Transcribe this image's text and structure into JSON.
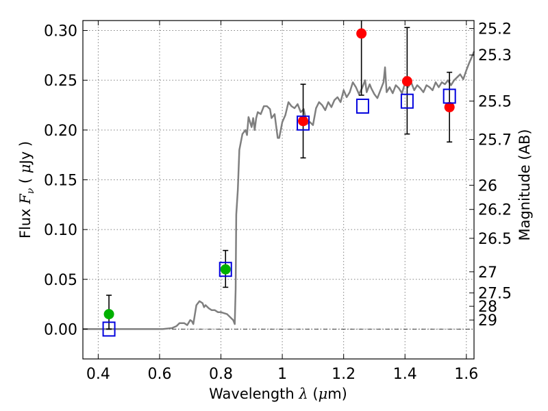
{
  "chart_data": {
    "type": "scatter",
    "xlabel": "Wavelength  λ (μm)",
    "ylabel": "Flux  F_ν  ( μJy )",
    "y2label": "Magnitude (AB)",
    "xlim": [
      0.35,
      1.625
    ],
    "ylim": [
      -0.03,
      0.31
    ],
    "grid": true,
    "x_ticks": [
      0.4,
      0.6,
      0.8,
      1.0,
      1.2,
      1.4,
      1.6
    ],
    "x_tick_labels": [
      "0.4",
      "0.6",
      "0.8",
      "1",
      "1.2",
      "1.4",
      "1.6"
    ],
    "y_ticks": [
      0.0,
      0.05,
      0.1,
      0.15,
      0.2,
      0.25,
      0.3
    ],
    "y_tick_labels": [
      "0.00",
      "0.05",
      "0.10",
      "0.15",
      "0.20",
      "0.25",
      "0.30"
    ],
    "y2_ticks": [
      "25.2",
      "25.3",
      "25.5",
      "25.7",
      "26",
      "26.2",
      "26.5",
      "27",
      "27.5",
      "28",
      "29"
    ],
    "zero_line": 0.0,
    "colors": {
      "spectrum": "#7f7f7f",
      "green": "#00b000",
      "red": "#ff0000",
      "blue": "#0000dd",
      "errorbar": "#000000"
    },
    "series": [
      {
        "style": "line",
        "color": "#7f7f7f",
        "points": [
          [
            0.35,
            0.0
          ],
          [
            0.58,
            0.0
          ],
          [
            0.61,
            0.0
          ],
          [
            0.64,
            0.001
          ],
          [
            0.655,
            0.003
          ],
          [
            0.665,
            0.006
          ],
          [
            0.68,
            0.006
          ],
          [
            0.69,
            0.004
          ],
          [
            0.7,
            0.009
          ],
          [
            0.705,
            0.008
          ],
          [
            0.71,
            0.005
          ],
          [
            0.72,
            0.024
          ],
          [
            0.73,
            0.028
          ],
          [
            0.74,
            0.026
          ],
          [
            0.745,
            0.022
          ],
          [
            0.75,
            0.024
          ],
          [
            0.76,
            0.021
          ],
          [
            0.77,
            0.019
          ],
          [
            0.78,
            0.019
          ],
          [
            0.79,
            0.017
          ],
          [
            0.8,
            0.017
          ],
          [
            0.81,
            0.016
          ],
          [
            0.82,
            0.015
          ],
          [
            0.83,
            0.012
          ],
          [
            0.84,
            0.009
          ],
          [
            0.845,
            0.005
          ],
          [
            0.848,
            0.04
          ],
          [
            0.85,
            0.115
          ],
          [
            0.855,
            0.14
          ],
          [
            0.86,
            0.18
          ],
          [
            0.87,
            0.196
          ],
          [
            0.88,
            0.2
          ],
          [
            0.885,
            0.195
          ],
          [
            0.89,
            0.213
          ],
          [
            0.895,
            0.208
          ],
          [
            0.9,
            0.203
          ],
          [
            0.905,
            0.212
          ],
          [
            0.91,
            0.2
          ],
          [
            0.915,
            0.212
          ],
          [
            0.92,
            0.218
          ],
          [
            0.93,
            0.216
          ],
          [
            0.94,
            0.224
          ],
          [
            0.95,
            0.224
          ],
          [
            0.96,
            0.221
          ],
          [
            0.965,
            0.212
          ],
          [
            0.975,
            0.216
          ],
          [
            0.985,
            0.192
          ],
          [
            0.99,
            0.192
          ],
          [
            1.0,
            0.208
          ],
          [
            1.01,
            0.215
          ],
          [
            1.02,
            0.228
          ],
          [
            1.03,
            0.224
          ],
          [
            1.04,
            0.222
          ],
          [
            1.05,
            0.226
          ],
          [
            1.06,
            0.218
          ],
          [
            1.07,
            0.221
          ],
          [
            1.08,
            0.206
          ],
          [
            1.09,
            0.208
          ],
          [
            1.1,
            0.205
          ],
          [
            1.11,
            0.222
          ],
          [
            1.12,
            0.228
          ],
          [
            1.13,
            0.225
          ],
          [
            1.14,
            0.22
          ],
          [
            1.15,
            0.228
          ],
          [
            1.16,
            0.223
          ],
          [
            1.17,
            0.23
          ],
          [
            1.18,
            0.233
          ],
          [
            1.19,
            0.228
          ],
          [
            1.2,
            0.24
          ],
          [
            1.21,
            0.233
          ],
          [
            1.22,
            0.238
          ],
          [
            1.23,
            0.248
          ],
          [
            1.24,
            0.243
          ],
          [
            1.25,
            0.236
          ],
          [
            1.26,
            0.242
          ],
          [
            1.27,
            0.25
          ],
          [
            1.275,
            0.238
          ],
          [
            1.285,
            0.246
          ],
          [
            1.29,
            0.242
          ],
          [
            1.3,
            0.236
          ],
          [
            1.31,
            0.232
          ],
          [
            1.32,
            0.24
          ],
          [
            1.33,
            0.248
          ],
          [
            1.335,
            0.263
          ],
          [
            1.34,
            0.238
          ],
          [
            1.35,
            0.243
          ],
          [
            1.36,
            0.237
          ],
          [
            1.37,
            0.245
          ],
          [
            1.38,
            0.242
          ],
          [
            1.39,
            0.237
          ],
          [
            1.4,
            0.247
          ],
          [
            1.41,
            0.243
          ],
          [
            1.42,
            0.248
          ],
          [
            1.43,
            0.24
          ],
          [
            1.44,
            0.245
          ],
          [
            1.45,
            0.242
          ],
          [
            1.46,
            0.238
          ],
          [
            1.47,
            0.245
          ],
          [
            1.48,
            0.243
          ],
          [
            1.49,
            0.24
          ],
          [
            1.5,
            0.248
          ],
          [
            1.51,
            0.243
          ],
          [
            1.52,
            0.248
          ],
          [
            1.53,
            0.246
          ],
          [
            1.54,
            0.25
          ],
          [
            1.55,
            0.245
          ],
          [
            1.56,
            0.25
          ],
          [
            1.57,
            0.253
          ],
          [
            1.58,
            0.256
          ],
          [
            1.59,
            0.251
          ],
          [
            1.6,
            0.26
          ],
          [
            1.61,
            0.268
          ],
          [
            1.62,
            0.275
          ],
          [
            1.625,
            0.279
          ]
        ]
      },
      {
        "style": "markers-circle",
        "color": "#00b000",
        "x": [
          0.435,
          0.815
        ],
        "y": [
          0.015,
          0.06
        ],
        "yerr_low": [
          0.0,
          0.042
        ],
        "yerr_high": [
          0.034,
          0.079
        ]
      },
      {
        "style": "markers-circle",
        "color": "#ff0000",
        "x": [
          1.068,
          1.258,
          1.407,
          1.545
        ],
        "y": [
          0.209,
          0.297,
          0.249,
          0.223
        ],
        "yerr_low": [
          0.172,
          0.235,
          0.196,
          0.188
        ],
        "yerr_high": [
          0.246,
          0.31,
          0.303,
          0.258
        ]
      },
      {
        "style": "markers-square-open",
        "color": "#0000dd",
        "x": [
          0.435,
          0.815,
          1.068,
          1.262,
          1.407,
          1.545
        ],
        "y": [
          0.0,
          0.06,
          0.207,
          0.224,
          0.229,
          0.234
        ]
      }
    ]
  }
}
